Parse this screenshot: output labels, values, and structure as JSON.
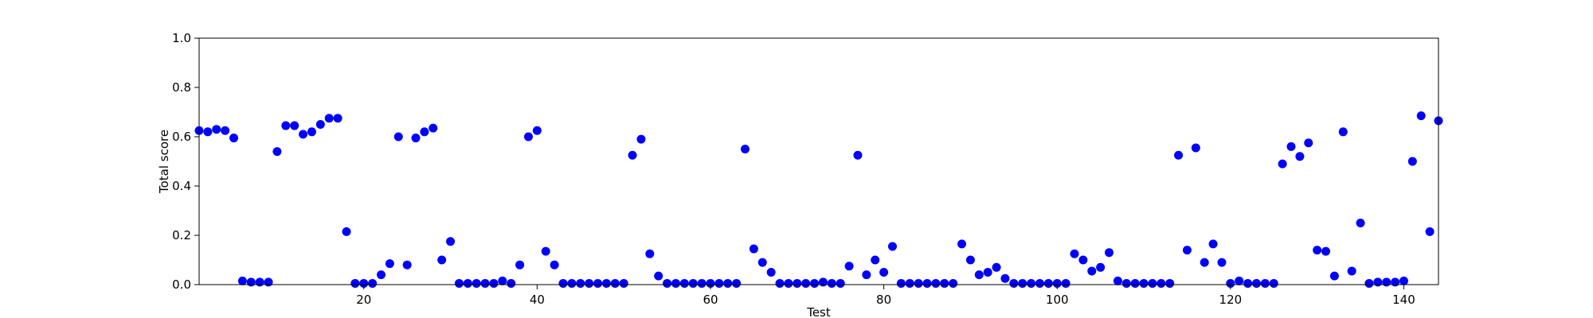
{
  "chart_data": {
    "type": "scatter",
    "xlabel": "Test",
    "ylabel": "Total score",
    "xlim": [
      1,
      144
    ],
    "ylim": [
      0.0,
      1.0
    ],
    "grid": false,
    "marker_color": "#0000ff",
    "x_ticks": [
      20,
      40,
      60,
      80,
      100,
      120,
      140
    ],
    "x_tick_labels": [
      "20",
      "40",
      "60",
      "80",
      "100",
      "120",
      "140"
    ],
    "y_ticks": [
      0.0,
      0.2,
      0.4,
      0.6,
      0.8,
      1.0
    ],
    "y_tick_labels": [
      "0.0",
      "0.2",
      "0.4",
      "0.6",
      "0.8",
      "1.0"
    ],
    "x": [
      1,
      2,
      3,
      4,
      5,
      6,
      7,
      8,
      9,
      10,
      11,
      12,
      13,
      14,
      15,
      16,
      17,
      18,
      19,
      20,
      21,
      22,
      23,
      24,
      25,
      26,
      27,
      28,
      29,
      30,
      31,
      32,
      33,
      34,
      35,
      36,
      37,
      38,
      39,
      40,
      41,
      42,
      43,
      44,
      45,
      46,
      47,
      48,
      49,
      50,
      51,
      52,
      53,
      54,
      55,
      56,
      57,
      58,
      59,
      60,
      61,
      62,
      63,
      64,
      65,
      66,
      67,
      68,
      69,
      70,
      71,
      72,
      73,
      74,
      75,
      76,
      77,
      78,
      79,
      80,
      81,
      82,
      83,
      84,
      85,
      86,
      87,
      88,
      89,
      90,
      91,
      92,
      93,
      94,
      95,
      96,
      97,
      98,
      99,
      100,
      101,
      102,
      103,
      104,
      105,
      106,
      107,
      108,
      109,
      110,
      111,
      112,
      113,
      114,
      115,
      116,
      117,
      118,
      119,
      120,
      121,
      122,
      123,
      124,
      125,
      126,
      127,
      128,
      129,
      130,
      131,
      132,
      133,
      134,
      135,
      136,
      137,
      138,
      139,
      140,
      141,
      142,
      143,
      144
    ],
    "y": [
      0.625,
      0.62,
      0.63,
      0.625,
      0.595,
      0.015,
      0.01,
      0.01,
      0.01,
      0.54,
      0.645,
      0.645,
      0.61,
      0.62,
      0.65,
      0.675,
      0.675,
      0.215,
      0.005,
      0.005,
      0.005,
      0.04,
      0.085,
      0.6,
      0.08,
      0.595,
      0.62,
      0.635,
      0.1,
      0.175,
      0.005,
      0.005,
      0.005,
      0.005,
      0.005,
      0.015,
      0.005,
      0.08,
      0.6,
      0.625,
      0.135,
      0.08,
      0.005,
      0.005,
      0.005,
      0.005,
      0.005,
      0.005,
      0.005,
      0.005,
      0.525,
      0.59,
      0.125,
      0.035,
      0.005,
      0.005,
      0.005,
      0.005,
      0.005,
      0.005,
      0.005,
      0.005,
      0.005,
      0.55,
      0.145,
      0.09,
      0.05,
      0.005,
      0.005,
      0.005,
      0.005,
      0.005,
      0.01,
      0.005,
      0.005,
      0.075,
      0.525,
      0.04,
      0.1,
      0.05,
      0.155,
      0.005,
      0.005,
      0.005,
      0.005,
      0.005,
      0.005,
      0.005,
      0.165,
      0.1,
      0.04,
      0.05,
      0.07,
      0.025,
      0.005,
      0.005,
      0.005,
      0.005,
      0.005,
      0.005,
      0.005,
      0.125,
      0.1,
      0.055,
      0.07,
      0.13,
      0.015,
      0.005,
      0.005,
      0.005,
      0.005,
      0.005,
      0.005,
      0.525,
      0.14,
      0.555,
      0.09,
      0.165,
      0.09,
      0.005,
      0.015,
      0.005,
      0.005,
      0.005,
      0.005,
      0.49,
      0.56,
      0.52,
      0.575,
      0.14,
      0.135,
      0.035,
      0.62,
      0.055,
      0.25,
      0.005,
      0.01,
      0.01,
      0.01,
      0.015,
      0.5,
      0.685,
      0.215,
      0.665
    ]
  }
}
